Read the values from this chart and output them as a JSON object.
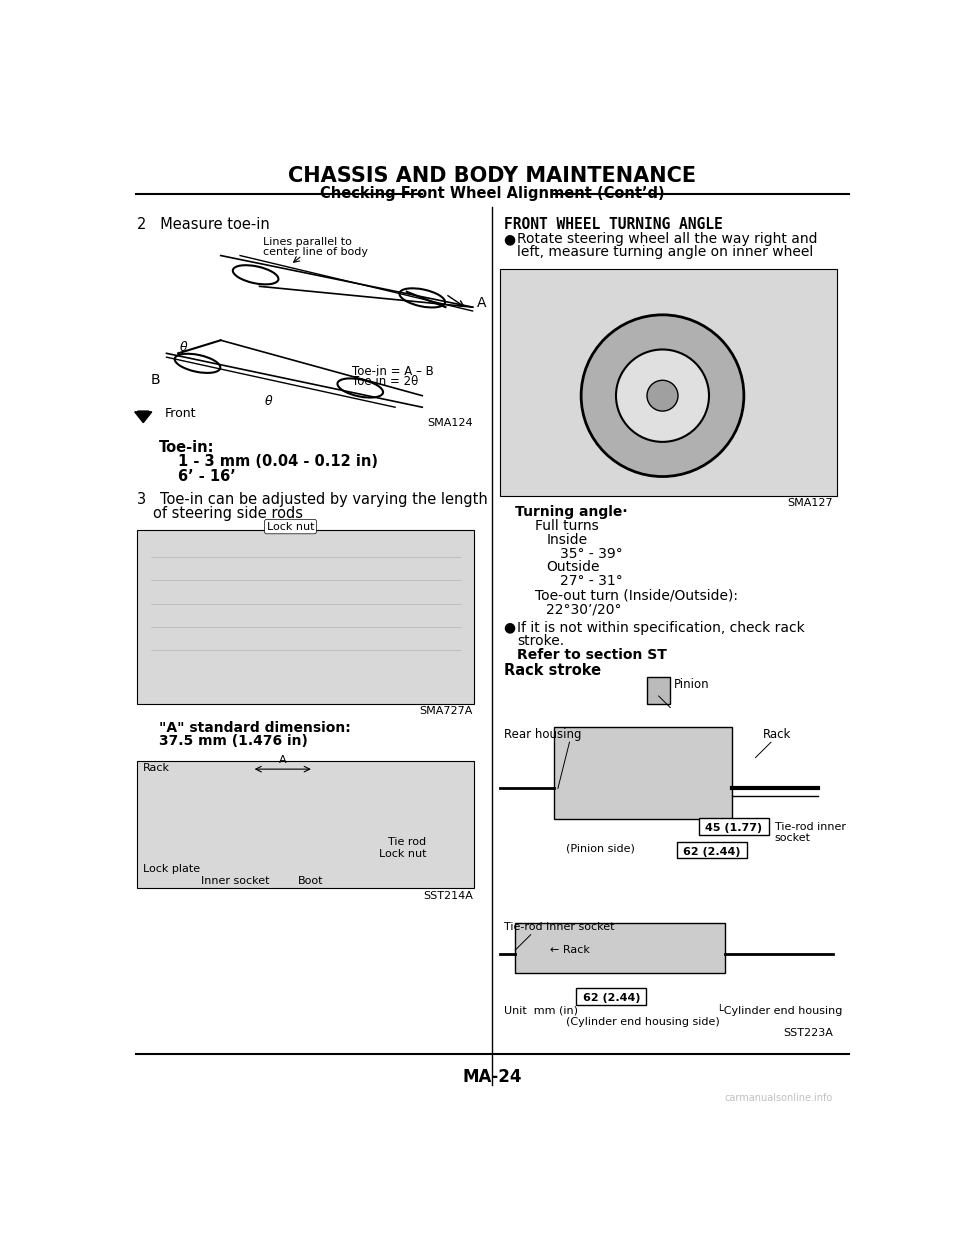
{
  "title": "CHASSIS AND BODY MAINTENANCE",
  "subtitle": "Checking Front Wheel Alignment (Cont’d)",
  "bg_color": "#ffffff",
  "text_color": "#000000",
  "page_number": "MA-24",
  "watermark": "carmanualsonline.info",
  "left_section": {
    "step2_header": "2   Measure toe-in",
    "diagram1_caption_line1": "Lines parallel to",
    "diagram1_caption_line2": "center line of body",
    "diagram1_label_A": "A",
    "diagram1_label_B": "B",
    "diagram1_label_theta1": "θ",
    "diagram1_label_theta2": "θ",
    "diagram1_label_front": "Front",
    "diagram1_formula1": "Toe-in = A – B",
    "diagram1_formula2": "Toe in = 2θ",
    "diagram1_code": "SMA124",
    "toe_in_header": "Toe-in:",
    "toe_in_value1": "1 - 3 mm (0.04 - 0.12 in)",
    "toe_in_value2": "6’ - 16’",
    "step3_header": "3   Toe-in can be adjusted by varying the length",
    "step3_cont": "of steering side rods",
    "diagram2_code": "SMA727A",
    "dim_header": "\"A\" standard dimension:",
    "dim_value": "37.5 mm (1.476 in)",
    "rack_label": "Rack",
    "tie_rod_label": "Tie rod",
    "lock_nut_label": "Lock nut",
    "lock_plate_label": "Lock plate",
    "inner_socket_label": "Inner socket",
    "boot_label": "Boot",
    "dim_code": "SST214A"
  },
  "right_section": {
    "header": "FRONT WHEEL TURNING ANGLE",
    "bullet1_line1": "Rotate steering wheel all the way right and",
    "bullet1_line2": "left, measure turning angle on inner wheel",
    "diagram3_code": "SMA127",
    "turning_angle_header": "Turning angle·",
    "full_turns": "Full turns",
    "inside_label": "Inside",
    "inside_value": "35° - 39°",
    "outside_label": "Outside",
    "outside_value": "27° - 31°",
    "toe_out_label": "Toe-out turn (Inside/Outside):",
    "toe_out_value": "22°30’/20°",
    "bullet2_line1": "If it is not within specification, check rack",
    "bullet2_line2": "stroke.",
    "refer_label": "Refer to section ST",
    "rack_stroke_header": "Rack stroke",
    "pinion_label": "Pinion",
    "rear_housing_label": "Rear housing",
    "rack_label2": "Rack",
    "pinion_side_label": "(Pinion side)",
    "dim45_label": "45 (1.77)",
    "dim62a_label": "62 (2.44)",
    "tie_rod_inner_socket_label": "Tie-rod inner socket",
    "tie_rod_inner_socket2_line1": "Tie-rod inner",
    "tie_rod_inner_socket2_line2": "socket",
    "rack_label3": "← Rack",
    "unit_label": "Unit  mm (in)",
    "dim62b_label": "62 (2.44)",
    "cylinder_end_label": "└Cylinder end housing",
    "cylinder_side_label": "(Cylinder end housing side)",
    "diagram4_code": "SST223A"
  }
}
